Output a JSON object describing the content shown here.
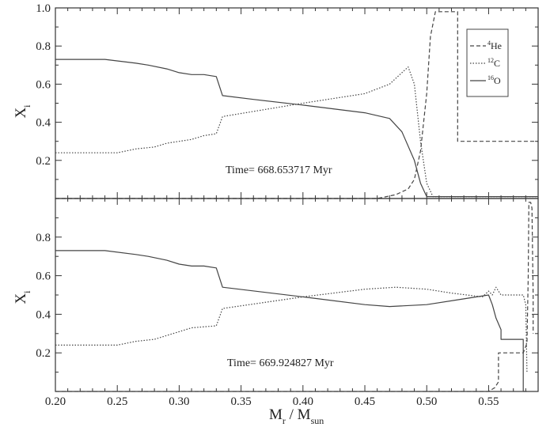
{
  "chart_data": [
    {
      "type": "line",
      "panel": "top",
      "xlim": [
        0.2,
        0.59
      ],
      "ylim": [
        0.0,
        1.0
      ],
      "ylabel": "X",
      "ylabel_sub": "i",
      "yticks": [
        0.2,
        0.4,
        0.6,
        0.8,
        1.0
      ],
      "ytick_labels": [
        "0.2",
        "0.4",
        "0.6",
        "0.8",
        "1.0"
      ],
      "annotation": "Time= 668.653717 Myr",
      "legend_position": "top-right",
      "legend": [
        {
          "iso_sup": "4",
          "iso": "He",
          "dash": "dashed"
        },
        {
          "iso_sup": "12",
          "iso": "C",
          "dash": "dotted"
        },
        {
          "iso_sup": "16",
          "iso": "O",
          "dash": "solid"
        }
      ],
      "series": [
        {
          "key": "He",
          "dash": "dashed",
          "x": [
            0.2,
            0.46,
            0.475,
            0.485,
            0.49,
            0.495,
            0.5,
            0.503,
            0.507,
            0.525,
            0.525,
            0.59
          ],
          "y": [
            0.0,
            0.0,
            0.02,
            0.05,
            0.1,
            0.25,
            0.55,
            0.85,
            0.98,
            0.98,
            0.3,
            0.3
          ]
        },
        {
          "key": "C",
          "dash": "dotted",
          "x": [
            0.2,
            0.25,
            0.265,
            0.28,
            0.29,
            0.31,
            0.32,
            0.33,
            0.335,
            0.4,
            0.45,
            0.47,
            0.48,
            0.485,
            0.49,
            0.495,
            0.5,
            0.505,
            0.525,
            0.59
          ],
          "y": [
            0.24,
            0.24,
            0.26,
            0.27,
            0.29,
            0.31,
            0.33,
            0.34,
            0.43,
            0.5,
            0.55,
            0.6,
            0.66,
            0.69,
            0.6,
            0.3,
            0.08,
            0.01,
            0.01,
            0.01
          ]
        },
        {
          "key": "O",
          "dash": "solid",
          "x": [
            0.2,
            0.24,
            0.265,
            0.275,
            0.29,
            0.3,
            0.31,
            0.32,
            0.33,
            0.335,
            0.36,
            0.4,
            0.45,
            0.47,
            0.48,
            0.49,
            0.495,
            0.5,
            0.525,
            0.59
          ],
          "y": [
            0.73,
            0.73,
            0.71,
            0.7,
            0.68,
            0.66,
            0.65,
            0.65,
            0.64,
            0.54,
            0.52,
            0.49,
            0.45,
            0.42,
            0.35,
            0.2,
            0.08,
            0.01,
            0.01,
            0.01
          ]
        }
      ]
    },
    {
      "type": "line",
      "panel": "bottom",
      "xlim": [
        0.2,
        0.59
      ],
      "ylim": [
        0.0,
        1.0
      ],
      "xlabel": "M",
      "xlabel_sub_1": "r",
      "xlabel_mid": " / M",
      "xlabel_sub_2": "sun",
      "ylabel": "X",
      "ylabel_sub": "i",
      "xticks": [
        0.2,
        0.25,
        0.3,
        0.35,
        0.4,
        0.45,
        0.5,
        0.55
      ],
      "xtick_labels": [
        "0.20",
        "0.25",
        "0.30",
        "0.35",
        "0.40",
        "0.45",
        "0.50",
        "0.55"
      ],
      "yticks": [
        0.2,
        0.4,
        0.6,
        0.8
      ],
      "ytick_labels": [
        "0.2",
        "0.4",
        "0.6",
        "0.8"
      ],
      "annotation": "Time= 669.924827 Myr",
      "series": [
        {
          "key": "He",
          "dash": "dashed",
          "x": [
            0.2,
            0.55,
            0.555,
            0.558,
            0.558,
            0.578,
            0.578,
            0.581,
            0.582,
            0.5825,
            0.584,
            0.585,
            0.586,
            0.586
          ],
          "y": [
            0.0,
            0.0,
            0.02,
            0.05,
            0.2,
            0.2,
            0.2,
            0.25,
            0.6,
            0.98,
            0.98,
            0.95,
            0.5,
            0.3
          ]
        },
        {
          "key": "C",
          "dash": "dotted",
          "x": [
            0.2,
            0.25,
            0.265,
            0.28,
            0.29,
            0.3,
            0.31,
            0.33,
            0.335,
            0.4,
            0.45,
            0.475,
            0.5,
            0.52,
            0.545,
            0.55,
            0.553,
            0.556,
            0.558,
            0.56,
            0.578,
            0.58,
            0.581
          ],
          "y": [
            0.24,
            0.24,
            0.26,
            0.27,
            0.29,
            0.31,
            0.33,
            0.34,
            0.43,
            0.49,
            0.53,
            0.54,
            0.53,
            0.51,
            0.49,
            0.52,
            0.5,
            0.54,
            0.52,
            0.5,
            0.5,
            0.45,
            0.1
          ]
        },
        {
          "key": "O",
          "dash": "solid",
          "x": [
            0.2,
            0.24,
            0.265,
            0.275,
            0.29,
            0.3,
            0.31,
            0.32,
            0.33,
            0.335,
            0.4,
            0.45,
            0.47,
            0.5,
            0.53,
            0.55,
            0.553,
            0.556,
            0.56,
            0.56,
            0.578,
            0.578,
            0.581
          ],
          "y": [
            0.73,
            0.73,
            0.71,
            0.7,
            0.68,
            0.66,
            0.65,
            0.65,
            0.64,
            0.54,
            0.49,
            0.45,
            0.44,
            0.45,
            0.48,
            0.5,
            0.45,
            0.38,
            0.32,
            0.27,
            0.27,
            0.0,
            0.0
          ]
        }
      ]
    }
  ]
}
